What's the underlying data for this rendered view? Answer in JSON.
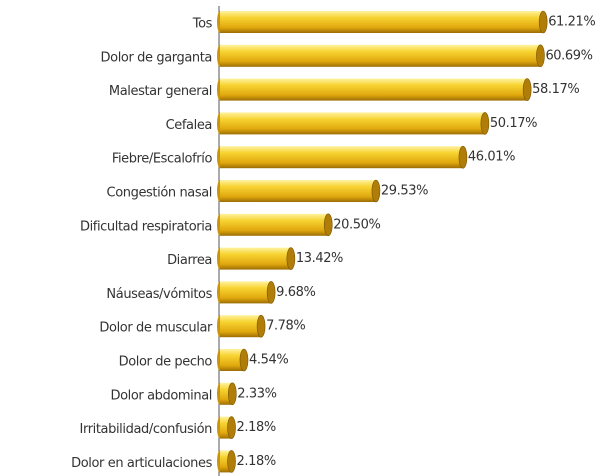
{
  "chart_data": {
    "type": "bar",
    "orientation": "horizontal",
    "categories": [
      "Tos",
      "Dolor de garganta",
      "Malestar general",
      "Cefalea",
      "Fiebre/Escalofrío",
      "Congestión nasal",
      "Dificultad respiratoria",
      "Diarrea",
      "Náuseas/vómitos",
      "Dolor de muscular",
      "Dolor de pecho",
      "Dolor abdominal",
      "Irritabilidad/confusión",
      "Dolor en articulaciones"
    ],
    "values": [
      61.21,
      60.69,
      58.17,
      50.17,
      46.01,
      29.53,
      20.5,
      13.42,
      9.68,
      7.78,
      4.54,
      2.33,
      2.18,
      2.18
    ],
    "value_labels": [
      "61.21%",
      "60.69%",
      "58.17%",
      "50.17%",
      "46.01%",
      "29.53%",
      "20.50%",
      "13.42%",
      "9.68%",
      "7.78%",
      "4.54%",
      "2.33%",
      "2.18%",
      "2.18%"
    ],
    "color": "#f2c21b"
  }
}
